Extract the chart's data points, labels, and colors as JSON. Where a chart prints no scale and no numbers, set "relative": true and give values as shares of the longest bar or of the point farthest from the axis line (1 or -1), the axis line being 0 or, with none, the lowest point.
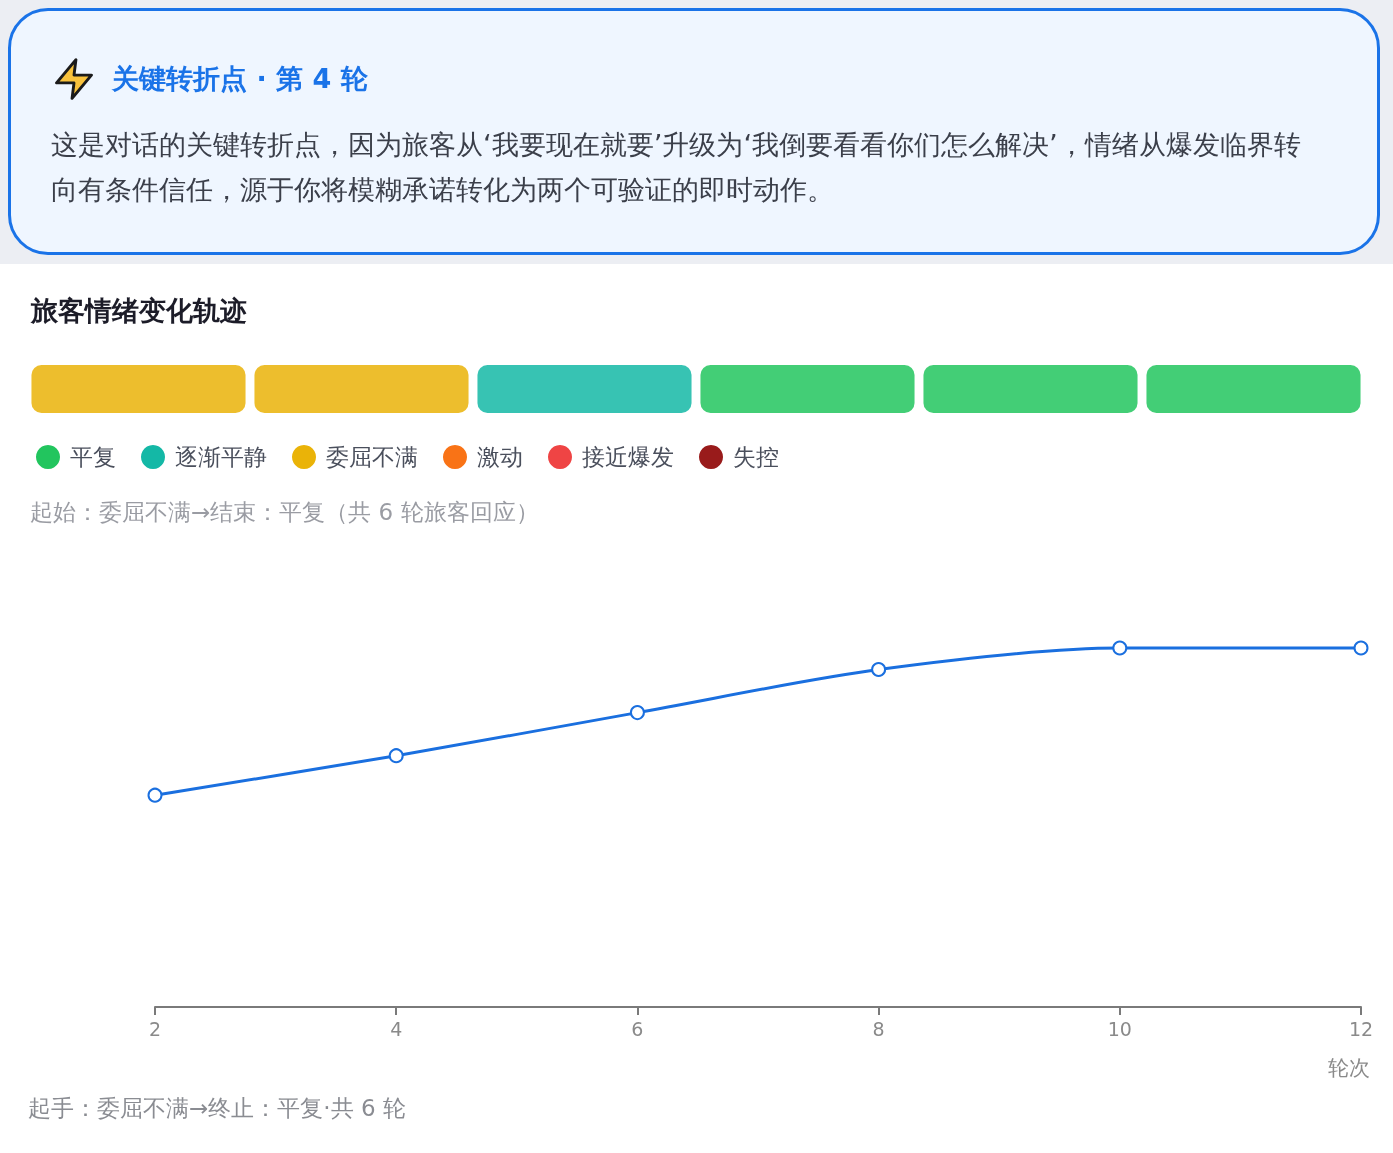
{
  "chart_data": [
    {
      "type": "other",
      "title": "关键转折点 · 第 4 轮",
      "annotations": [
        "这是对话的关键转折点，因为旅客从‘我要现在就要’升级为‘我倒要看看你们怎么解决’，情绪从爆发临界转向有条件信任，源于你将模糊承诺转化为两个可验证的即时动作。"
      ]
    },
    {
      "type": "bar",
      "title": "旅客情绪变化轨迹",
      "subtitle": "起始：委屈不满→结束：平复（共 6 轮旅客回应）",
      "categories": [
        null,
        null,
        null,
        null,
        null,
        null
      ],
      "relative": true,
      "stacked": true,
      "tick_labels": false,
      "legend": "bottom",
      "series": [
        {
          "name": "平复",
          "color": "#22c55e",
          "values": [
            null,
            null,
            null,
            1,
            1,
            1
          ]
        },
        {
          "name": "逐渐平静",
          "color": "#14b8a6",
          "values": [
            null,
            null,
            1,
            null,
            null,
            null
          ]
        },
        {
          "name": "委屈不满",
          "color": "#eab308",
          "values": [
            1,
            1,
            null,
            null,
            null,
            null
          ]
        },
        {
          "name": "激动",
          "color": "#f97316",
          "values": [
            null,
            null,
            null,
            null,
            null,
            null
          ]
        },
        {
          "name": "接近爆发",
          "color": "#ef4444",
          "values": [
            null,
            null,
            null,
            null,
            null,
            null
          ]
        },
        {
          "name": "失控",
          "color": "#991b1b",
          "values": [
            null,
            null,
            null,
            null,
            null,
            null
          ]
        }
      ]
    },
    {
      "type": "line",
      "x": [
        2,
        4,
        6,
        8,
        10,
        12
      ],
      "values": [
        0.59,
        0.7,
        0.82,
        0.94,
        1,
        1
      ],
      "relative": true,
      "color": "#1a6fdf",
      "marker": "circle",
      "line_style": "solid",
      "xlim": [
        2,
        12
      ],
      "xticks": [
        2,
        4,
        6,
        8,
        10,
        12
      ],
      "xlabel": "轮次",
      "annotations": [
        "起手：委屈不满→终止：平复·共 6 轮"
      ]
    }
  ]
}
